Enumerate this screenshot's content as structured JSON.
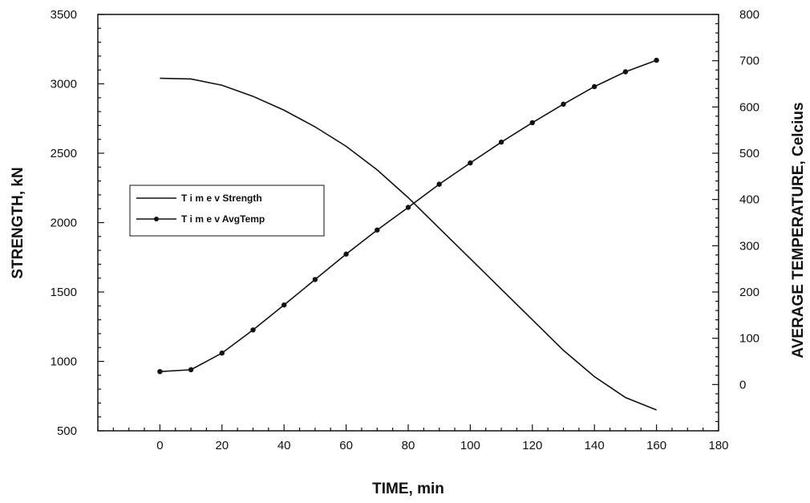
{
  "chart_data": {
    "type": "line",
    "xlabel": "TIME, min",
    "ylabel": "STRENGTH, kN",
    "y2label": "AVERAGE TEMPERATURE, Celcius",
    "xlim": [
      -20,
      180
    ],
    "ylim": [
      500,
      3500
    ],
    "y2lim": [
      -100,
      800
    ],
    "x_ticks": [
      0,
      20,
      40,
      60,
      80,
      100,
      120,
      140,
      160,
      180
    ],
    "y_ticks": [
      500,
      1000,
      1500,
      2000,
      2500,
      3000,
      3500
    ],
    "y2_ticks": [
      0,
      100,
      200,
      300,
      400,
      500,
      600,
      700,
      800
    ],
    "legend_position": "middle-left",
    "series": [
      {
        "name": "T i m e v Strength",
        "axis": "left",
        "marker": "none",
        "x": [
          0,
          10,
          20,
          30,
          40,
          50,
          60,
          70,
          80,
          90,
          100,
          110,
          120,
          130,
          140,
          150,
          160
        ],
        "values": [
          3040,
          3035,
          2990,
          2910,
          2810,
          2690,
          2550,
          2380,
          2180,
          1960,
          1740,
          1520,
          1300,
          1080,
          890,
          740,
          650
        ]
      },
      {
        "name": "T i m e v AvgTemp",
        "axis": "right",
        "marker": "dot",
        "x": [
          0,
          10,
          20,
          30,
          40,
          50,
          60,
          70,
          80,
          90,
          100,
          110,
          120,
          130,
          140,
          150,
          160
        ],
        "values": [
          28,
          32,
          68,
          118,
          172,
          227,
          282,
          334,
          383,
          433,
          479,
          524,
          566,
          606,
          644,
          676,
          701
        ]
      }
    ]
  }
}
